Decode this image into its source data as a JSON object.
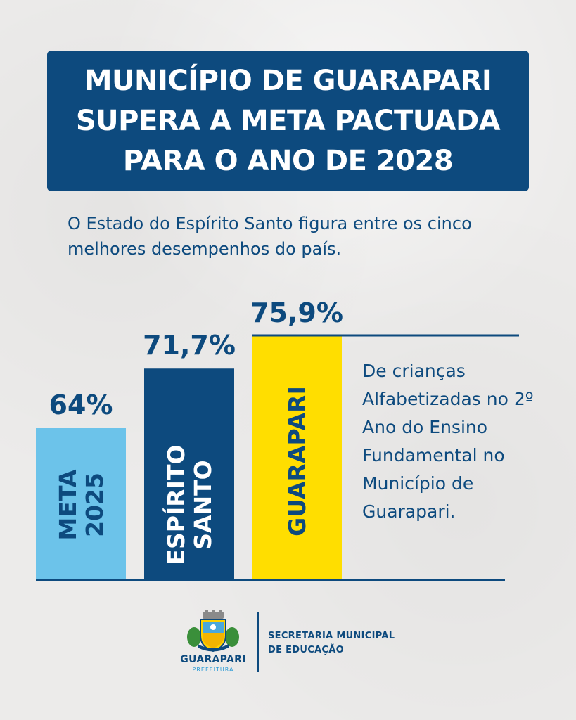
{
  "header": {
    "title_lines": [
      "MUNICÍPIO DE GUARAPARI",
      "SUPERA A META PACTUADA",
      "PARA O ANO DE 2028"
    ]
  },
  "subtitle": "O Estado do Espírito Santo figura entre os cinco melhores desempenhos do país.",
  "chart_data": {
    "type": "bar",
    "categories": [
      "META 2025",
      "ESPÍRITO SANTO",
      "GUARAPARI"
    ],
    "category_lines": [
      [
        "META",
        "2025"
      ],
      [
        "ESPÍRITO",
        "SANTO"
      ],
      [
        "GUARAPARI"
      ]
    ],
    "values": [
      64,
      71.7,
      75.9
    ],
    "value_labels": [
      "64%",
      "71,7%",
      "75,9%"
    ],
    "colors": [
      "#6cc3ea",
      "#0d4a7e",
      "#ffde00"
    ],
    "label_colors": [
      "#0d4a7e",
      "#ffffff",
      "#0d4a7e"
    ],
    "unit": "%",
    "title": "",
    "xlabel": "",
    "ylabel": "",
    "grid": false,
    "legend": "none"
  },
  "description": "De crianças Alfabetizadas no 2º Ano do Ensino Fundamental no Município de Guarapari.",
  "footer": {
    "logo_name": "GUARAPARI",
    "logo_sub": "PREFEITURA",
    "secretaria_lines": [
      "SECRETARIA MUNICIPAL",
      "DE EDUCAÇÃO"
    ]
  },
  "icons": [
    "coat-of-arms-icon"
  ]
}
